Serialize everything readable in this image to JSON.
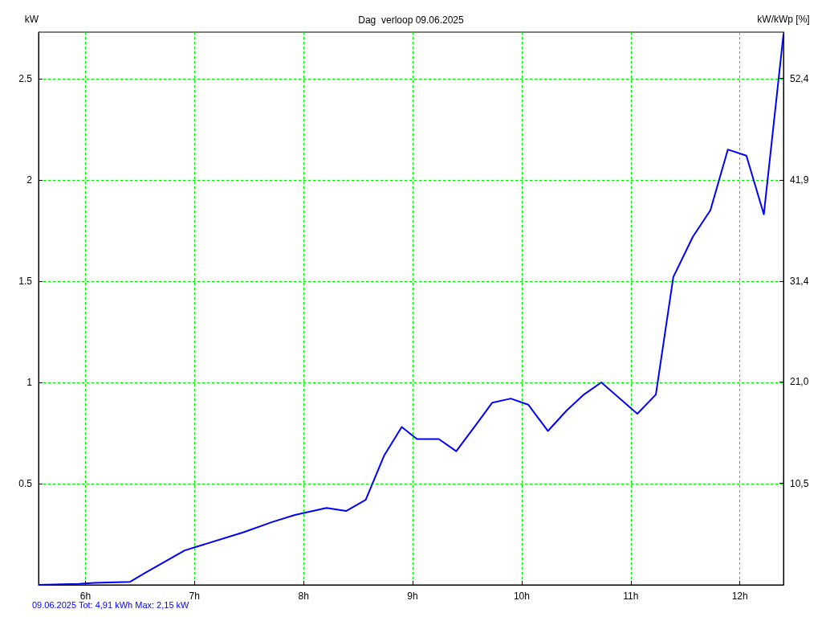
{
  "chart_data": {
    "type": "line",
    "title": "Dag  verloop 09.06.2025",
    "ylabel": "kW",
    "y2label": "kW/kWp [%]",
    "annotations": [
      "09.06.2025 Tot: 4,91 kWh Max: 2,15 kW"
    ],
    "xlim": [
      5.57,
      12.4
    ],
    "xticks": [
      {
        "value": 6,
        "label": "6h"
      },
      {
        "value": 7,
        "label": "7h"
      },
      {
        "value": 8,
        "label": "8h"
      },
      {
        "value": 9,
        "label": "9h"
      },
      {
        "value": 10,
        "label": "10h"
      },
      {
        "value": 11,
        "label": "11h"
      },
      {
        "value": 12,
        "label": "12h"
      }
    ],
    "ylim": [
      0,
      2.73
    ],
    "yticks": [
      0.5,
      1,
      1.5,
      2,
      2.5
    ],
    "y2lim": [
      0,
      57.2
    ],
    "y2ticks": [
      {
        "value": 10.5,
        "label": "10,5"
      },
      {
        "value": 21.0,
        "label": "21,0"
      },
      {
        "value": 31.4,
        "label": "31,4"
      },
      {
        "value": 41.9,
        "label": "41,9"
      },
      {
        "value": 52.4,
        "label": "52,4"
      }
    ],
    "grid": true,
    "marker": "none",
    "line_style": "solid",
    "series": [
      {
        "color": "#0000ff",
        "x": [
          5.57,
          5.94,
          6.08,
          6.41,
          6.55,
          6.91,
          7.45,
          7.71,
          7.92,
          8.21,
          8.39,
          8.57,
          8.74,
          8.9,
          9.04,
          9.24,
          9.4,
          9.58,
          9.73,
          9.9,
          10.06,
          10.24,
          10.41,
          10.57,
          10.73,
          11.06,
          11.23,
          11.39,
          11.57,
          11.73,
          11.89,
          12.06,
          12.22,
          12.4
        ],
        "values": [
          0,
          0.005,
          0.01,
          0.015,
          0.06,
          0.17,
          0.26,
          0.31,
          0.345,
          0.38,
          0.365,
          0.42,
          0.64,
          0.78,
          0.72,
          0.72,
          0.66,
          0.79,
          0.9,
          0.92,
          0.89,
          0.76,
          0.86,
          0.94,
          1.0,
          0.845,
          0.94,
          1.52,
          1.72,
          1.85,
          2.15,
          2.12,
          1.83,
          2.72
        ]
      }
    ]
  }
}
